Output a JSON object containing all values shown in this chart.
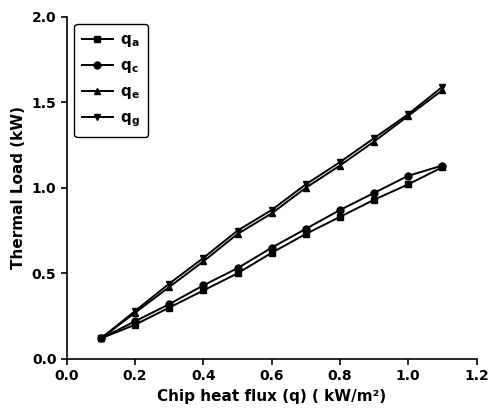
{
  "x": [
    0.1,
    0.2,
    0.3,
    0.4,
    0.5,
    0.6,
    0.7,
    0.8,
    0.9,
    1.0,
    1.1
  ],
  "qa": [
    0.12,
    0.2,
    0.3,
    0.4,
    0.5,
    0.62,
    0.73,
    0.83,
    0.93,
    1.02,
    1.12
  ],
  "qc": [
    0.12,
    0.22,
    0.32,
    0.43,
    0.53,
    0.65,
    0.76,
    0.87,
    0.97,
    1.07,
    1.13
  ],
  "qe": [
    0.12,
    0.27,
    0.42,
    0.57,
    0.73,
    0.85,
    1.0,
    1.13,
    1.27,
    1.42,
    1.57
  ],
  "qg": [
    0.12,
    0.28,
    0.44,
    0.59,
    0.75,
    0.87,
    1.02,
    1.15,
    1.29,
    1.43,
    1.59
  ],
  "xlim": [
    0.0,
    1.2
  ],
  "ylim": [
    0.0,
    2.0
  ],
  "xlabel": "Chip heat flux (q) ( kW/m²)",
  "ylabel": "Thermal Load (kW)",
  "xticks": [
    0.0,
    0.2,
    0.4,
    0.6,
    0.8,
    1.0,
    1.2
  ],
  "yticks": [
    0.0,
    0.5,
    1.0,
    1.5,
    2.0
  ],
  "line_color": "#000000",
  "marker_size": 5,
  "linewidth": 1.4,
  "legend_fontsize": 11,
  "axis_fontsize": 11,
  "tick_fontsize": 10
}
